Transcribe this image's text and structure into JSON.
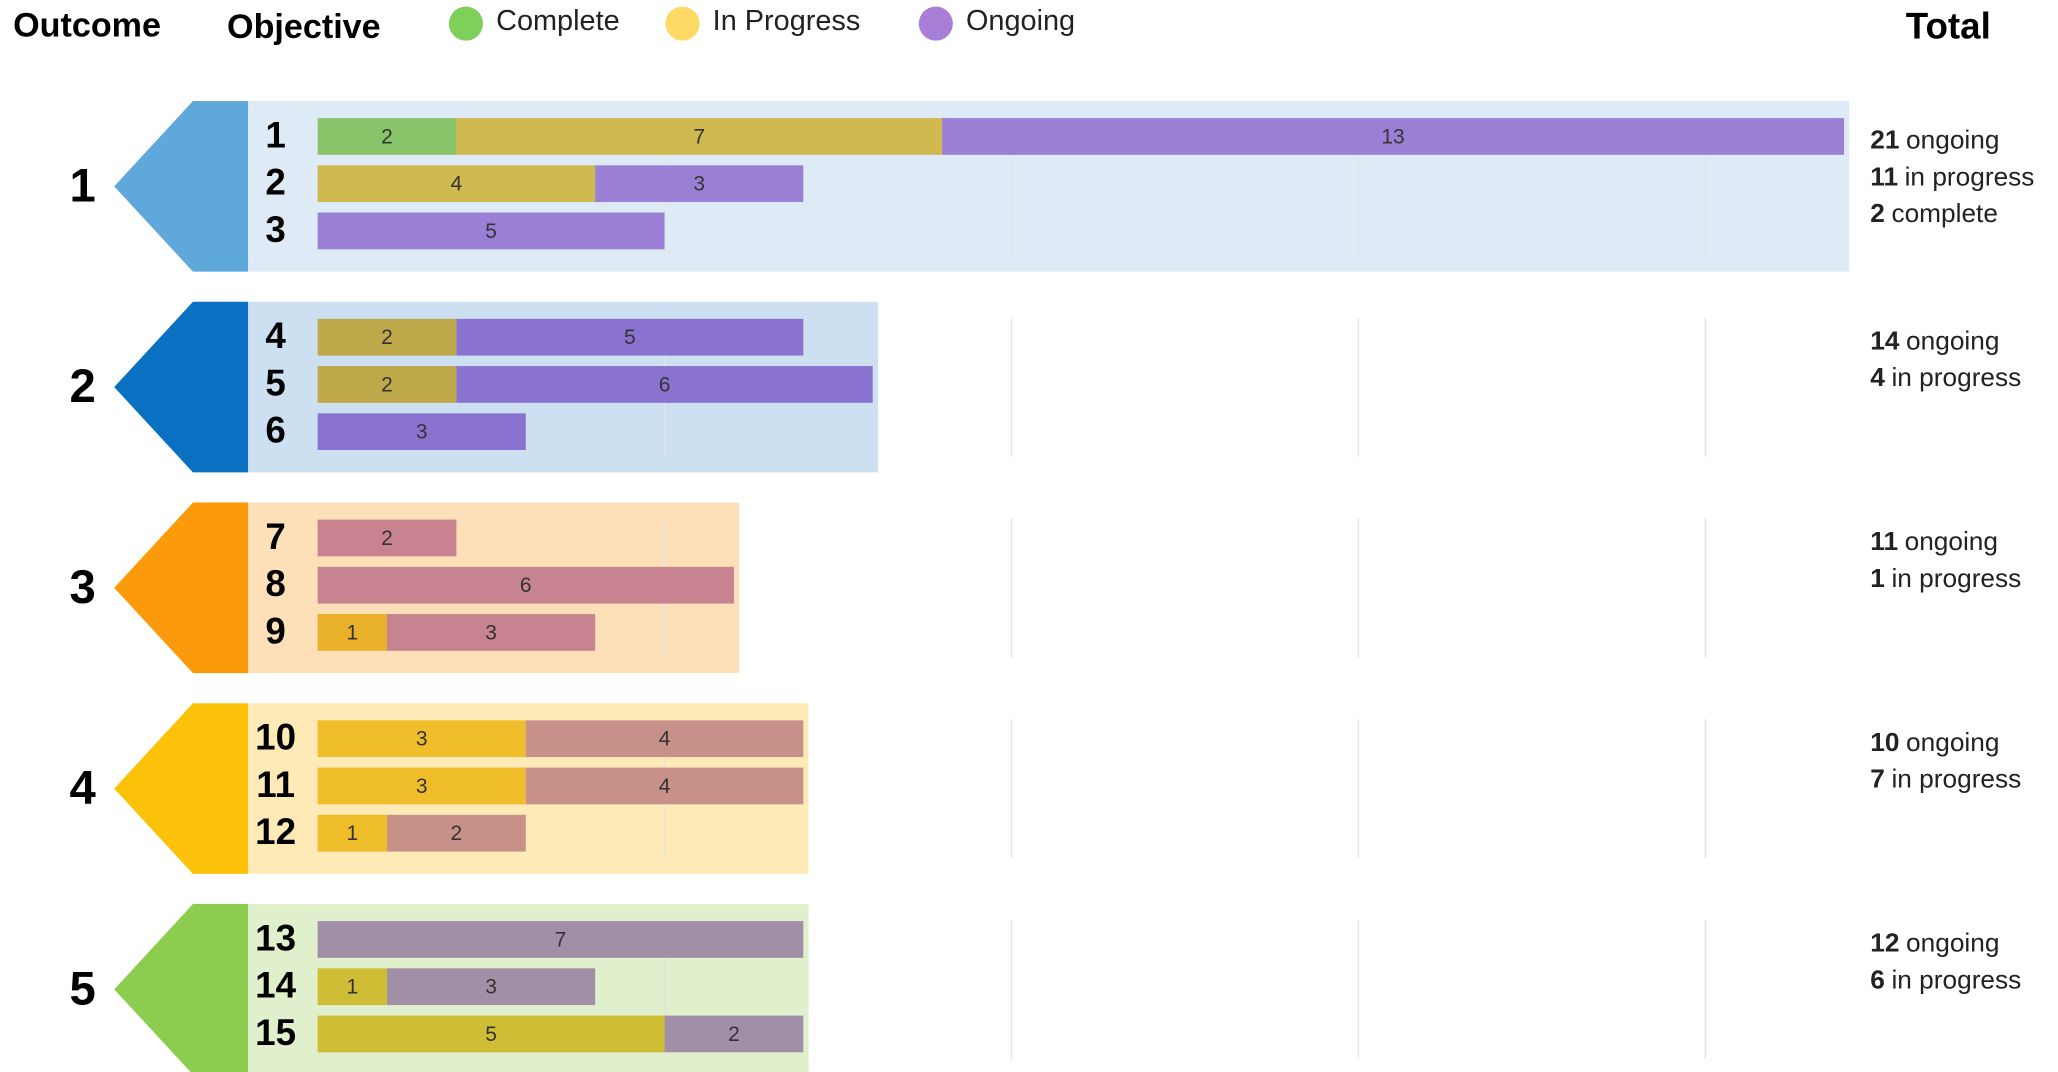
{
  "chart_data": {
    "type": "grouped_stacked_bar",
    "headers": {
      "outcome": "Outcome",
      "objective": "Objective",
      "total": "Total"
    },
    "legend": [
      {
        "name": "Complete",
        "color": "#7ed05a"
      },
      {
        "name": "In Progress",
        "color": "#ffd966"
      },
      {
        "name": "Ongoing",
        "color": "#a77fd6"
      }
    ],
    "xlim": [
      0,
      22
    ],
    "grid_lines": [
      5,
      10,
      15,
      20
    ],
    "outcomes": [
      {
        "label": "1",
        "arrow_color": "#5fa8dc",
        "panel_color": "#deebf7",
        "objectives": [
          {
            "label": "1",
            "segments": [
              {
                "value": 2,
                "color": "#88c46a"
              },
              {
                "value": 7,
                "color": "#cfb84f"
              },
              {
                "value": 13,
                "color": "#9b7fd4"
              }
            ]
          },
          {
            "label": "2",
            "segments": [
              {
                "value": 4,
                "color": "#cfb84f"
              },
              {
                "value": 3,
                "color": "#9b7fd4"
              }
            ]
          },
          {
            "label": "3",
            "segments": [
              {
                "value": 5,
                "color": "#9b7fd4"
              }
            ]
          }
        ],
        "totals": [
          {
            "value": 21,
            "label": "ongoing"
          },
          {
            "value": 11,
            "label": "in progress"
          },
          {
            "value": 2,
            "label": "complete"
          }
        ]
      },
      {
        "label": "2",
        "arrow_color": "#0a70c2",
        "panel_color": "#cde0f2",
        "objectives": [
          {
            "label": "4",
            "segments": [
              {
                "value": 2,
                "color": "#bfa84a"
              },
              {
                "value": 5,
                "color": "#8a73d0"
              }
            ]
          },
          {
            "label": "5",
            "segments": [
              {
                "value": 2,
                "color": "#bfa84a"
              },
              {
                "value": 6,
                "color": "#8a73d0"
              }
            ]
          },
          {
            "label": "6",
            "segments": [
              {
                "value": 3,
                "color": "#8a73d0"
              }
            ]
          }
        ],
        "totals": [
          {
            "value": 14,
            "label": "ongoing"
          },
          {
            "value": 4,
            "label": "in progress"
          }
        ]
      },
      {
        "label": "3",
        "arrow_color": "#fb9a0a",
        "panel_color": "#fde0b8",
        "objectives": [
          {
            "label": "7",
            "segments": [
              {
                "value": 2,
                "color": "#c78390"
              }
            ]
          },
          {
            "label": "8",
            "segments": [
              {
                "value": 6,
                "color": "#c78390"
              }
            ]
          },
          {
            "label": "9",
            "segments": [
              {
                "value": 1,
                "color": "#e9b02a"
              },
              {
                "value": 3,
                "color": "#c78390"
              }
            ]
          }
        ],
        "totals": [
          {
            "value": 11,
            "label": "ongoing"
          },
          {
            "value": 1,
            "label": "in progress"
          }
        ]
      },
      {
        "label": "4",
        "arrow_color": "#fcc20a",
        "panel_color": "#fdeab7",
        "objectives": [
          {
            "label": "10",
            "segments": [
              {
                "value": 3,
                "color": "#efbd2a"
              },
              {
                "value": 4,
                "color": "#c79089"
              }
            ]
          },
          {
            "label": "11",
            "segments": [
              {
                "value": 3,
                "color": "#efbd2a"
              },
              {
                "value": 4,
                "color": "#c79089"
              }
            ]
          },
          {
            "label": "12",
            "segments": [
              {
                "value": 1,
                "color": "#efbd2a"
              },
              {
                "value": 2,
                "color": "#c79089"
              }
            ]
          }
        ],
        "totals": [
          {
            "value": 10,
            "label": "ongoing"
          },
          {
            "value": 7,
            "label": "in progress"
          }
        ]
      },
      {
        "label": "5",
        "arrow_color": "#8ccd4f",
        "panel_color": "#e0efcc",
        "objectives": [
          {
            "label": "13",
            "segments": [
              {
                "value": 7,
                "color": "#a18fa8"
              }
            ]
          },
          {
            "label": "14",
            "segments": [
              {
                "value": 1,
                "color": "#cfbd35"
              },
              {
                "value": 3,
                "color": "#a18fa8"
              }
            ]
          },
          {
            "label": "15",
            "segments": [
              {
                "value": 5,
                "color": "#cfbd35"
              },
              {
                "value": 2,
                "color": "#a18fa8"
              }
            ]
          }
        ],
        "totals": [
          {
            "value": 12,
            "label": "ongoing"
          },
          {
            "value": 6,
            "label": "in progress"
          }
        ]
      }
    ]
  }
}
